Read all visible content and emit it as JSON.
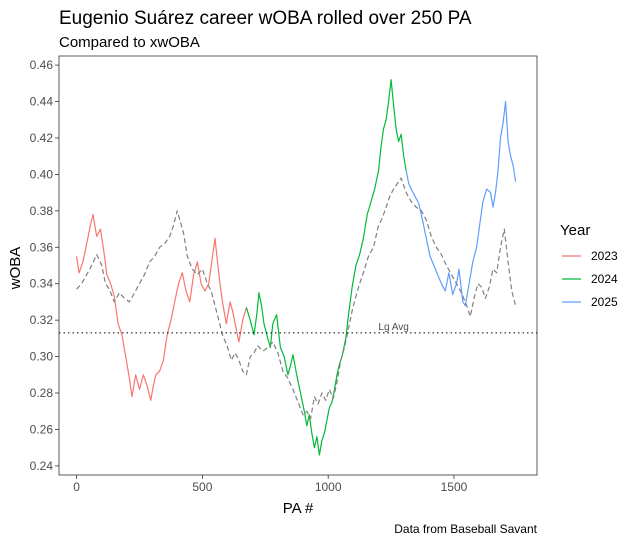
{
  "chart_data": {
    "type": "line",
    "title": "Eugenio Suárez career wOBA rolled over 250 PA",
    "subtitle": "Compared to xwOBA",
    "xlabel": "PA #",
    "ylabel": "wOBA",
    "caption": "Data from Baseball Savant",
    "xlim": [
      -70,
      1830
    ],
    "ylim": [
      0.235,
      0.465
    ],
    "x_ticks": [
      0,
      500,
      1000,
      1500
    ],
    "y_ticks": [
      0.24,
      0.26,
      0.28,
      0.3,
      0.32,
      0.34,
      0.36,
      0.38,
      0.4,
      0.42,
      0.44,
      0.46
    ],
    "y_tick_labels": [
      "0.24",
      "0.26",
      "0.28",
      "0.30",
      "0.32",
      "0.34",
      "0.36",
      "0.38",
      "0.40",
      "0.42",
      "0.44",
      "0.46"
    ],
    "grid": false,
    "legend": {
      "title": "Year",
      "placement": "right"
    },
    "reference_line": {
      "y": 0.313,
      "label": "Lg Avg",
      "label_x": 1260,
      "style": "dotted",
      "color": "#000000"
    },
    "series": [
      {
        "name": "2023",
        "color": "#F8766D",
        "points": [
          [
            0,
            0.355
          ],
          [
            10,
            0.346
          ],
          [
            25,
            0.352
          ],
          [
            40,
            0.362
          ],
          [
            55,
            0.372
          ],
          [
            65,
            0.378
          ],
          [
            80,
            0.366
          ],
          [
            95,
            0.37
          ],
          [
            110,
            0.356
          ],
          [
            120,
            0.345
          ],
          [
            135,
            0.34
          ],
          [
            150,
            0.333
          ],
          [
            165,
            0.318
          ],
          [
            180,
            0.312
          ],
          [
            195,
            0.3
          ],
          [
            210,
            0.288
          ],
          [
            220,
            0.278
          ],
          [
            235,
            0.29
          ],
          [
            250,
            0.282
          ],
          [
            265,
            0.29
          ],
          [
            280,
            0.284
          ],
          [
            295,
            0.276
          ],
          [
            305,
            0.284
          ],
          [
            315,
            0.29
          ],
          [
            330,
            0.292
          ],
          [
            345,
            0.298
          ],
          [
            360,
            0.312
          ],
          [
            375,
            0.32
          ],
          [
            390,
            0.33
          ],
          [
            405,
            0.34
          ],
          [
            420,
            0.346
          ],
          [
            435,
            0.336
          ],
          [
            450,
            0.33
          ],
          [
            465,
            0.345
          ],
          [
            480,
            0.352
          ],
          [
            495,
            0.34
          ],
          [
            510,
            0.336
          ],
          [
            525,
            0.34
          ],
          [
            540,
            0.355
          ],
          [
            550,
            0.365
          ],
          [
            560,
            0.352
          ],
          [
            570,
            0.34
          ],
          [
            580,
            0.33
          ],
          [
            595,
            0.318
          ],
          [
            610,
            0.33
          ],
          [
            620,
            0.325
          ],
          [
            630,
            0.318
          ],
          [
            645,
            0.308
          ],
          [
            660,
            0.32
          ],
          [
            675,
            0.327
          ]
        ]
      },
      {
        "name": "2024",
        "color": "#00BA38",
        "points": [
          [
            675,
            0.327
          ],
          [
            690,
            0.32
          ],
          [
            705,
            0.312
          ],
          [
            715,
            0.322
          ],
          [
            725,
            0.335
          ],
          [
            735,
            0.328
          ],
          [
            745,
            0.318
          ],
          [
            760,
            0.31
          ],
          [
            770,
            0.305
          ],
          [
            780,
            0.318
          ],
          [
            795,
            0.323
          ],
          [
            810,
            0.305
          ],
          [
            825,
            0.3
          ],
          [
            840,
            0.29
          ],
          [
            850,
            0.295
          ],
          [
            860,
            0.301
          ],
          [
            875,
            0.29
          ],
          [
            890,
            0.28
          ],
          [
            905,
            0.27
          ],
          [
            915,
            0.262
          ],
          [
            925,
            0.268
          ],
          [
            935,
            0.258
          ],
          [
            945,
            0.25
          ],
          [
            955,
            0.256
          ],
          [
            965,
            0.246
          ],
          [
            975,
            0.254
          ],
          [
            985,
            0.258
          ],
          [
            995,
            0.265
          ],
          [
            1005,
            0.272
          ],
          [
            1015,
            0.275
          ],
          [
            1025,
            0.282
          ],
          [
            1035,
            0.29
          ],
          [
            1045,
            0.296
          ],
          [
            1055,
            0.3
          ],
          [
            1070,
            0.31
          ],
          [
            1080,
            0.322
          ],
          [
            1095,
            0.338
          ],
          [
            1110,
            0.35
          ],
          [
            1125,
            0.356
          ],
          [
            1140,
            0.365
          ],
          [
            1155,
            0.378
          ],
          [
            1170,
            0.385
          ],
          [
            1185,
            0.392
          ],
          [
            1200,
            0.402
          ],
          [
            1210,
            0.415
          ],
          [
            1220,
            0.425
          ],
          [
            1230,
            0.43
          ],
          [
            1240,
            0.44
          ],
          [
            1250,
            0.452
          ],
          [
            1260,
            0.438
          ],
          [
            1270,
            0.425
          ],
          [
            1280,
            0.418
          ],
          [
            1290,
            0.422
          ],
          [
            1300,
            0.41
          ],
          [
            1310,
            0.402
          ]
        ]
      },
      {
        "name": "2025",
        "color": "#619CFF",
        "points": [
          [
            1310,
            0.402
          ],
          [
            1320,
            0.395
          ],
          [
            1330,
            0.392
          ],
          [
            1345,
            0.388
          ],
          [
            1360,
            0.384
          ],
          [
            1375,
            0.375
          ],
          [
            1390,
            0.365
          ],
          [
            1405,
            0.355
          ],
          [
            1420,
            0.35
          ],
          [
            1435,
            0.345
          ],
          [
            1450,
            0.34
          ],
          [
            1465,
            0.336
          ],
          [
            1480,
            0.346
          ],
          [
            1495,
            0.334
          ],
          [
            1510,
            0.34
          ],
          [
            1520,
            0.348
          ],
          [
            1535,
            0.33
          ],
          [
            1545,
            0.328
          ],
          [
            1560,
            0.34
          ],
          [
            1575,
            0.352
          ],
          [
            1590,
            0.36
          ],
          [
            1600,
            0.37
          ],
          [
            1615,
            0.385
          ],
          [
            1630,
            0.392
          ],
          [
            1645,
            0.39
          ],
          [
            1655,
            0.382
          ],
          [
            1665,
            0.39
          ],
          [
            1675,
            0.402
          ],
          [
            1685,
            0.42
          ],
          [
            1695,
            0.428
          ],
          [
            1705,
            0.44
          ],
          [
            1715,
            0.418
          ],
          [
            1725,
            0.41
          ],
          [
            1735,
            0.405
          ],
          [
            1745,
            0.396
          ]
        ]
      },
      {
        "name": "xwOBA",
        "color": "#808080",
        "dashed": true,
        "points": [
          [
            0,
            0.337
          ],
          [
            20,
            0.34
          ],
          [
            40,
            0.345
          ],
          [
            60,
            0.35
          ],
          [
            80,
            0.356
          ],
          [
            100,
            0.35
          ],
          [
            115,
            0.34
          ],
          [
            130,
            0.337
          ],
          [
            150,
            0.33
          ],
          [
            170,
            0.335
          ],
          [
            190,
            0.332
          ],
          [
            210,
            0.33
          ],
          [
            230,
            0.335
          ],
          [
            250,
            0.34
          ],
          [
            270,
            0.345
          ],
          [
            290,
            0.352
          ],
          [
            310,
            0.355
          ],
          [
            330,
            0.36
          ],
          [
            350,
            0.362
          ],
          [
            370,
            0.366
          ],
          [
            385,
            0.372
          ],
          [
            400,
            0.38
          ],
          [
            410,
            0.375
          ],
          [
            425,
            0.368
          ],
          [
            440,
            0.355
          ],
          [
            460,
            0.348
          ],
          [
            480,
            0.345
          ],
          [
            500,
            0.348
          ],
          [
            520,
            0.34
          ],
          [
            535,
            0.336
          ],
          [
            550,
            0.328
          ],
          [
            565,
            0.32
          ],
          [
            580,
            0.312
          ],
          [
            600,
            0.305
          ],
          [
            615,
            0.298
          ],
          [
            630,
            0.302
          ],
          [
            645,
            0.298
          ],
          [
            660,
            0.292
          ],
          [
            675,
            0.29
          ],
          [
            690,
            0.3
          ],
          [
            705,
            0.302
          ],
          [
            720,
            0.306
          ],
          [
            740,
            0.303
          ],
          [
            760,
            0.305
          ],
          [
            780,
            0.308
          ],
          [
            800,
            0.302
          ],
          [
            820,
            0.292
          ],
          [
            840,
            0.288
          ],
          [
            860,
            0.282
          ],
          [
            880,
            0.275
          ],
          [
            900,
            0.268
          ],
          [
            915,
            0.27
          ],
          [
            930,
            0.266
          ],
          [
            945,
            0.278
          ],
          [
            960,
            0.274
          ],
          [
            975,
            0.28
          ],
          [
            990,
            0.276
          ],
          [
            1005,
            0.282
          ],
          [
            1020,
            0.277
          ],
          [
            1035,
            0.286
          ],
          [
            1050,
            0.298
          ],
          [
            1065,
            0.305
          ],
          [
            1080,
            0.315
          ],
          [
            1095,
            0.325
          ],
          [
            1110,
            0.333
          ],
          [
            1125,
            0.34
          ],
          [
            1140,
            0.346
          ],
          [
            1160,
            0.355
          ],
          [
            1180,
            0.36
          ],
          [
            1200,
            0.372
          ],
          [
            1215,
            0.376
          ],
          [
            1230,
            0.382
          ],
          [
            1245,
            0.388
          ],
          [
            1260,
            0.392
          ],
          [
            1275,
            0.395
          ],
          [
            1290,
            0.398
          ],
          [
            1310,
            0.39
          ],
          [
            1330,
            0.385
          ],
          [
            1350,
            0.382
          ],
          [
            1370,
            0.38
          ],
          [
            1390,
            0.375
          ],
          [
            1410,
            0.366
          ],
          [
            1430,
            0.36
          ],
          [
            1450,
            0.356
          ],
          [
            1470,
            0.35
          ],
          [
            1490,
            0.345
          ],
          [
            1510,
            0.34
          ],
          [
            1530,
            0.335
          ],
          [
            1550,
            0.328
          ],
          [
            1565,
            0.322
          ],
          [
            1580,
            0.332
          ],
          [
            1595,
            0.34
          ],
          [
            1610,
            0.338
          ],
          [
            1625,
            0.332
          ],
          [
            1640,
            0.338
          ],
          [
            1655,
            0.348
          ],
          [
            1670,
            0.346
          ],
          [
            1685,
            0.36
          ],
          [
            1700,
            0.37
          ],
          [
            1715,
            0.352
          ],
          [
            1730,
            0.336
          ],
          [
            1745,
            0.328
          ]
        ]
      }
    ]
  }
}
